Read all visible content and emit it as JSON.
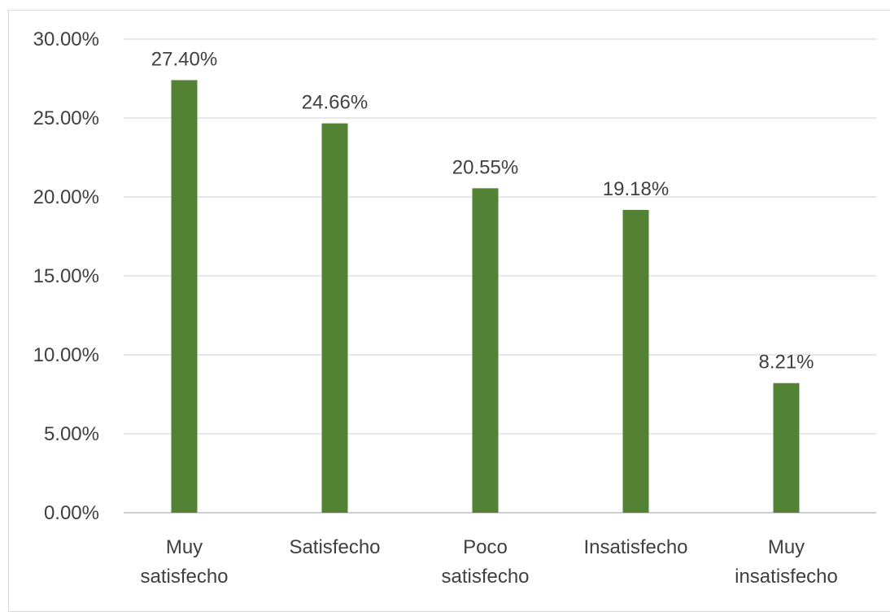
{
  "chart_data": {
    "type": "bar",
    "categories": [
      [
        "Muy",
        "satisfecho"
      ],
      [
        "Satisfecho"
      ],
      [
        "Poco",
        "satisfecho"
      ],
      [
        "Insatisfecho"
      ],
      [
        "Muy",
        "insatisfecho"
      ]
    ],
    "values": [
      27.4,
      24.66,
      20.55,
      19.18,
      8.21
    ],
    "data_labels": [
      "27.40%",
      "24.66%",
      "20.55%",
      "19.18%",
      "8.21%"
    ],
    "ytick_labels": [
      "0.00%",
      "5.00%",
      "10.00%",
      "15.00%",
      "20.00%",
      "25.00%",
      "30.00%"
    ],
    "ylim": [
      0,
      30
    ],
    "grid": true,
    "bar_color": "#548235",
    "legend": false
  }
}
